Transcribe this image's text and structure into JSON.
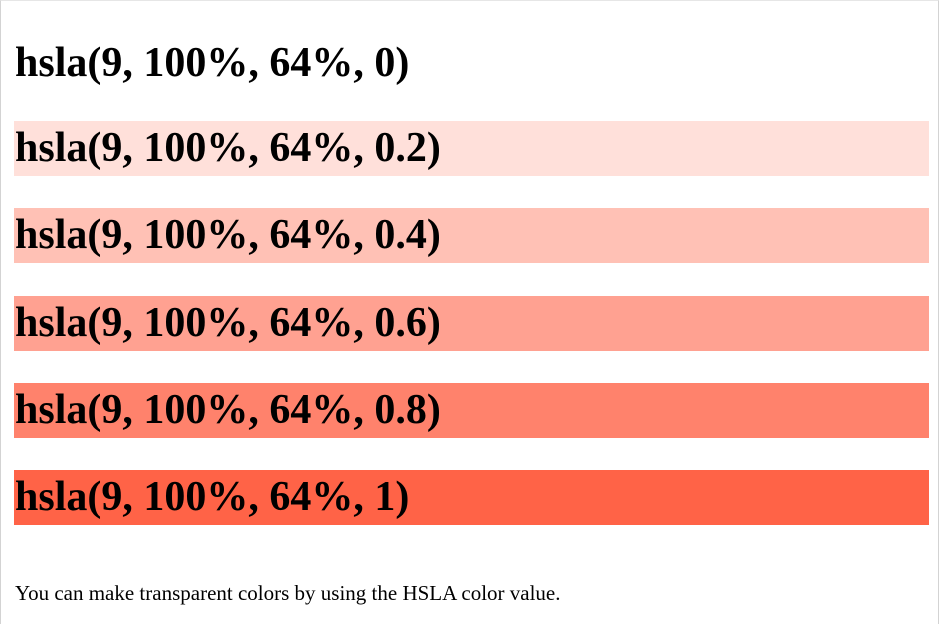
{
  "headings": [
    {
      "text": "hsla(9, 100%, 64%, 0)",
      "background": "hsla(9, 100%, 64%, 0)"
    },
    {
      "text": "hsla(9, 100%, 64%, 0.2)",
      "background": "hsla(9, 100%, 64%, 0.2)"
    },
    {
      "text": "hsla(9, 100%, 64%, 0.4)",
      "background": "hsla(9, 100%, 64%, 0.4)"
    },
    {
      "text": "hsla(9, 100%, 64%, 0.6)",
      "background": "hsla(9, 100%, 64%, 0.6)"
    },
    {
      "text": "hsla(9, 100%, 64%, 0.8)",
      "background": "hsla(9, 100%, 64%, 0.8)"
    },
    {
      "text": "hsla(9, 100%, 64%, 1)",
      "background": "hsla(9, 100%, 64%, 1)"
    }
  ],
  "paragraph": "You can make transparent colors by using the HSLA color value."
}
